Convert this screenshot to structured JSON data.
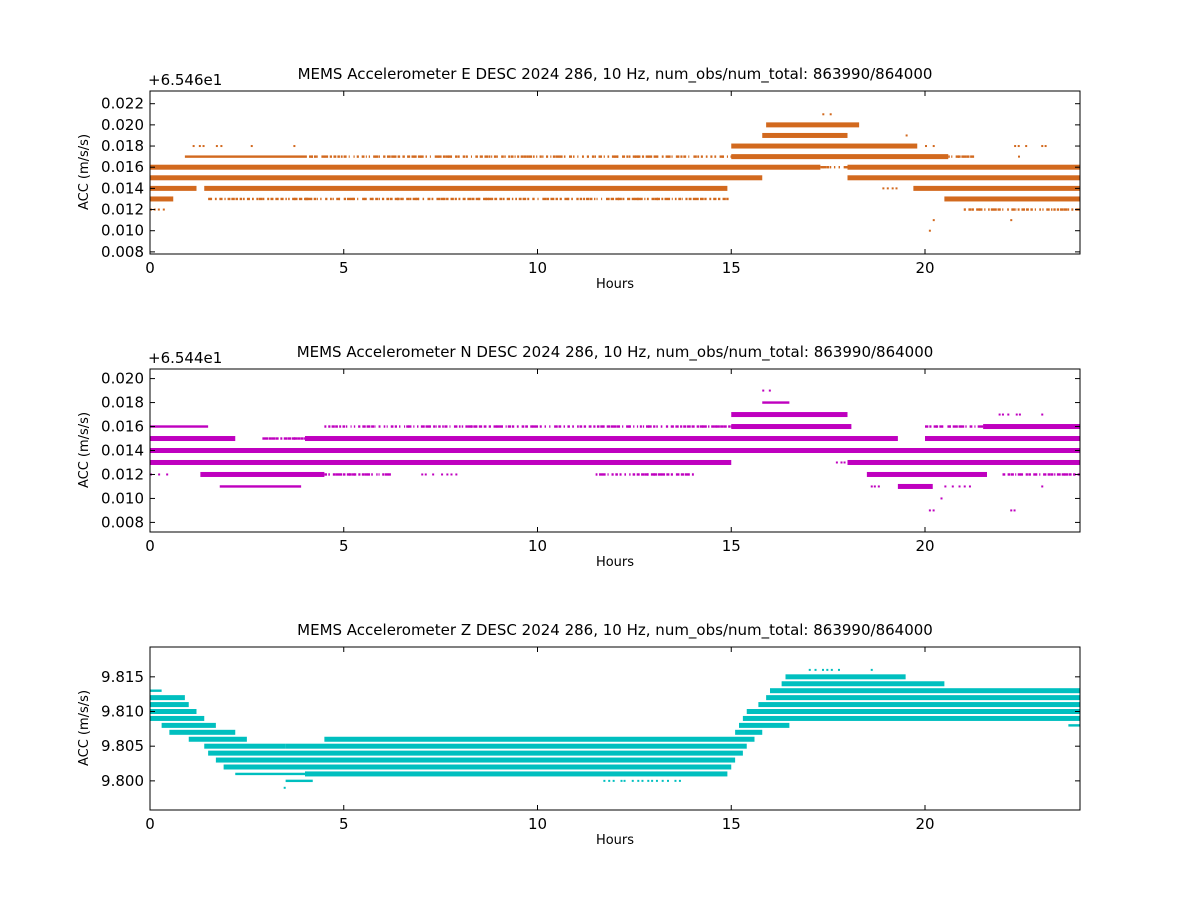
{
  "chart_data": [
    {
      "type": "scatter",
      "title": "MEMS Accelerometer E DESC 2024 286, 10 Hz, num_obs/num_total: 863990/864000",
      "xlabel": "Hours",
      "ylabel": "ACC (m/s/s)",
      "offset_text": "+6.546e1",
      "color": "#d2691e",
      "xlim": [
        0,
        24
      ],
      "ylim": [
        0.0078,
        0.0232
      ],
      "xticks": [
        "0",
        "5",
        "10",
        "15",
        "20"
      ],
      "xtick_values": [
        0,
        5,
        10,
        15,
        20
      ],
      "yticks": [
        "0.008",
        "0.010",
        "0.012",
        "0.014",
        "0.016",
        "0.018",
        "0.020",
        "0.022"
      ],
      "ytick_values": [
        0.008,
        0.01,
        0.012,
        0.014,
        0.016,
        0.018,
        0.02,
        0.022
      ],
      "level_step": 0.001,
      "bands": [
        {
          "y": 0.021,
          "segments": [
            [
              17.35,
              17.6,
              "sparse"
            ]
          ]
        },
        {
          "y": 0.02,
          "segments": [
            [
              15.9,
              18.3,
              "thick"
            ]
          ]
        },
        {
          "y": 0.019,
          "segments": [
            [
              15.8,
              18.0,
              "thick"
            ],
            [
              19.5,
              19.6,
              "sparse"
            ]
          ]
        },
        {
          "y": 0.018,
          "segments": [
            [
              1.1,
              1.4,
              "sparse"
            ],
            [
              1.7,
              1.9,
              "sparse"
            ],
            [
              2.6,
              2.7,
              "sparse"
            ],
            [
              3.7,
              3.8,
              "sparse"
            ],
            [
              15.0,
              19.8,
              "thick"
            ],
            [
              20.0,
              20.2,
              "sparse"
            ],
            [
              22.3,
              22.6,
              "sparse"
            ],
            [
              23.0,
              23.1,
              "sparse"
            ]
          ]
        },
        {
          "y": 0.017,
          "segments": [
            [
              0.9,
              4.0,
              "thin"
            ],
            [
              4.0,
              15.0,
              "dotted"
            ],
            [
              15.0,
              20.6,
              "thick"
            ],
            [
              20.6,
              21.2,
              "dotted"
            ],
            [
              22.4,
              22.6,
              "sparse"
            ]
          ]
        },
        {
          "y": 0.016,
          "segments": [
            [
              0.0,
              17.3,
              "thick"
            ],
            [
              17.3,
              18.0,
              "dotted"
            ],
            [
              18.0,
              24.0,
              "thick"
            ]
          ]
        },
        {
          "y": 0.015,
          "segments": [
            [
              0.0,
              15.8,
              "thick"
            ],
            [
              18.0,
              24.0,
              "thick"
            ]
          ]
        },
        {
          "y": 0.014,
          "segments": [
            [
              0.0,
              1.2,
              "thick"
            ],
            [
              1.4,
              14.9,
              "thick"
            ],
            [
              18.9,
              19.3,
              "sparse"
            ],
            [
              19.7,
              24.0,
              "thick"
            ]
          ]
        },
        {
          "y": 0.013,
          "segments": [
            [
              0.0,
              0.6,
              "thick"
            ],
            [
              1.5,
              4.0,
              "dotted"
            ],
            [
              4.0,
              14.9,
              "dotted"
            ],
            [
              20.5,
              24.0,
              "thick"
            ]
          ]
        },
        {
          "y": 0.012,
          "segments": [
            [
              0.0,
              0.5,
              "sparse"
            ],
            [
              21.0,
              24.0,
              "dotted"
            ]
          ]
        },
        {
          "y": 0.011,
          "segments": [
            [
              20.2,
              20.3,
              "sparse"
            ],
            [
              22.2,
              22.3,
              "sparse"
            ]
          ]
        },
        {
          "y": 0.01,
          "segments": [
            [
              20.1,
              20.2,
              "sparse"
            ]
          ]
        }
      ]
    },
    {
      "type": "scatter",
      "title": "MEMS Accelerometer N DESC 2024 286, 10 Hz, num_obs/num_total: 863990/864000",
      "xlabel": "Hours",
      "ylabel": "ACC (m/s/s)",
      "offset_text": "+6.544e1",
      "color": "#bf00bf",
      "xlim": [
        0,
        24
      ],
      "ylim": [
        0.0072,
        0.0208
      ],
      "xticks": [
        "0",
        "5",
        "10",
        "15",
        "20"
      ],
      "xtick_values": [
        0,
        5,
        10,
        15,
        20
      ],
      "yticks": [
        "0.008",
        "0.010",
        "0.012",
        "0.014",
        "0.016",
        "0.018",
        "0.020"
      ],
      "ytick_values": [
        0.008,
        0.01,
        0.012,
        0.014,
        0.016,
        0.018,
        0.02
      ],
      "level_step": 0.001,
      "bands": [
        {
          "y": 0.019,
          "segments": [
            [
              15.8,
              16.0,
              "sparse"
            ]
          ]
        },
        {
          "y": 0.018,
          "segments": [
            [
              15.8,
              16.5,
              "thin"
            ]
          ]
        },
        {
          "y": 0.017,
          "segments": [
            [
              15.0,
              18.0,
              "thick"
            ],
            [
              21.9,
              22.5,
              "sparse"
            ],
            [
              23.0,
              23.1,
              "sparse"
            ]
          ]
        },
        {
          "y": 0.016,
          "segments": [
            [
              0.0,
              1.5,
              "thin"
            ],
            [
              4.5,
              15.0,
              "dotted"
            ],
            [
              15.0,
              18.1,
              "thick"
            ],
            [
              20.0,
              21.5,
              "dotted"
            ],
            [
              21.5,
              24.0,
              "thick"
            ]
          ]
        },
        {
          "y": 0.015,
          "segments": [
            [
              0.0,
              2.2,
              "thick"
            ],
            [
              2.9,
              4.0,
              "dotted"
            ],
            [
              4.0,
              19.3,
              "thick"
            ],
            [
              20.0,
              24.0,
              "thick"
            ]
          ]
        },
        {
          "y": 0.014,
          "segments": [
            [
              0.0,
              24.0,
              "thick"
            ]
          ]
        },
        {
          "y": 0.013,
          "segments": [
            [
              0.0,
              15.0,
              "thick"
            ],
            [
              17.7,
              18.0,
              "sparse"
            ],
            [
              18.0,
              24.0,
              "thick"
            ]
          ]
        },
        {
          "y": 0.012,
          "segments": [
            [
              0.0,
              0.6,
              "sparse"
            ],
            [
              1.3,
              4.5,
              "thick"
            ],
            [
              4.5,
              6.2,
              "dotted"
            ],
            [
              7.0,
              8.0,
              "sparse"
            ],
            [
              11.5,
              14.0,
              "dotted"
            ],
            [
              18.5,
              21.6,
              "thick"
            ],
            [
              22.0,
              24.0,
              "dotted"
            ]
          ]
        },
        {
          "y": 0.011,
          "segments": [
            [
              1.8,
              3.9,
              "thin"
            ],
            [
              18.6,
              18.8,
              "sparse"
            ],
            [
              19.3,
              20.2,
              "thick"
            ],
            [
              20.5,
              21.2,
              "sparse"
            ],
            [
              23.0,
              23.2,
              "sparse"
            ]
          ]
        },
        {
          "y": 0.01,
          "segments": [
            [
              20.4,
              20.5,
              "sparse"
            ]
          ]
        },
        {
          "y": 0.009,
          "segments": [
            [
              20.1,
              20.2,
              "sparse"
            ],
            [
              22.2,
              22.3,
              "sparse"
            ]
          ]
        }
      ]
    },
    {
      "type": "scatter",
      "title": "MEMS Accelerometer Z DESC 2024 286, 10 Hz, num_obs/num_total: 863990/864000",
      "xlabel": "Hours",
      "ylabel": "ACC (m/s/s)",
      "offset_text": "",
      "color": "#00bfbf",
      "xlim": [
        0,
        24
      ],
      "ylim": [
        9.7958,
        9.8193
      ],
      "xticks": [
        "0",
        "5",
        "10",
        "15",
        "20"
      ],
      "xtick_values": [
        0,
        5,
        10,
        15,
        20
      ],
      "yticks": [
        "9.800",
        "9.805",
        "9.810",
        "9.815"
      ],
      "ytick_values": [
        9.8,
        9.805,
        9.81,
        9.815
      ],
      "level_step": 0.001,
      "bands": [
        {
          "y": 9.816,
          "segments": [
            [
              17.0,
              17.8,
              "sparse"
            ],
            [
              18.6,
              18.7,
              "sparse"
            ]
          ]
        },
        {
          "y": 9.815,
          "segments": [
            [
              16.4,
              19.5,
              "thick"
            ]
          ]
        },
        {
          "y": 9.814,
          "segments": [
            [
              16.3,
              20.5,
              "thick"
            ]
          ]
        },
        {
          "y": 9.813,
          "segments": [
            [
              0.0,
              0.3,
              "thin"
            ],
            [
              16.0,
              24.0,
              "thick"
            ]
          ]
        },
        {
          "y": 9.812,
          "segments": [
            [
              0.0,
              0.9,
              "thick"
            ],
            [
              15.9,
              24.0,
              "thick"
            ]
          ]
        },
        {
          "y": 9.811,
          "segments": [
            [
              0.0,
              1.0,
              "thick"
            ],
            [
              15.7,
              24.0,
              "thick"
            ]
          ]
        },
        {
          "y": 9.81,
          "segments": [
            [
              0.0,
              1.2,
              "thick"
            ],
            [
              15.4,
              24.0,
              "thick"
            ]
          ]
        },
        {
          "y": 9.809,
          "segments": [
            [
              0.0,
              1.4,
              "thick"
            ],
            [
              15.3,
              24.0,
              "thick"
            ]
          ]
        },
        {
          "y": 9.808,
          "segments": [
            [
              0.3,
              1.7,
              "thick"
            ],
            [
              15.2,
              16.5,
              "thick"
            ],
            [
              23.7,
              24.0,
              "thin"
            ]
          ]
        },
        {
          "y": 9.807,
          "segments": [
            [
              0.5,
              2.2,
              "thick"
            ],
            [
              15.1,
              15.8,
              "thick"
            ]
          ]
        },
        {
          "y": 9.806,
          "segments": [
            [
              1.0,
              2.5,
              "thick"
            ],
            [
              4.5,
              15.6,
              "thick"
            ]
          ]
        },
        {
          "y": 9.805,
          "segments": [
            [
              1.4,
              3.5,
              "thick"
            ],
            [
              3.5,
              15.4,
              "thick"
            ]
          ]
        },
        {
          "y": 9.804,
          "segments": [
            [
              1.5,
              15.3,
              "thick"
            ]
          ]
        },
        {
          "y": 9.803,
          "segments": [
            [
              1.7,
              15.1,
              "thick"
            ]
          ]
        },
        {
          "y": 9.802,
          "segments": [
            [
              1.9,
              15.0,
              "thick"
            ]
          ]
        },
        {
          "y": 9.801,
          "segments": [
            [
              2.2,
              4.0,
              "thin"
            ],
            [
              4.0,
              14.9,
              "thick"
            ]
          ]
        },
        {
          "y": 9.8,
          "segments": [
            [
              3.5,
              4.2,
              "thin"
            ],
            [
              11.7,
              13.7,
              "sparse"
            ]
          ]
        },
        {
          "y": 9.799,
          "segments": [
            [
              3.45,
              3.55,
              "sparse"
            ]
          ]
        }
      ]
    }
  ]
}
